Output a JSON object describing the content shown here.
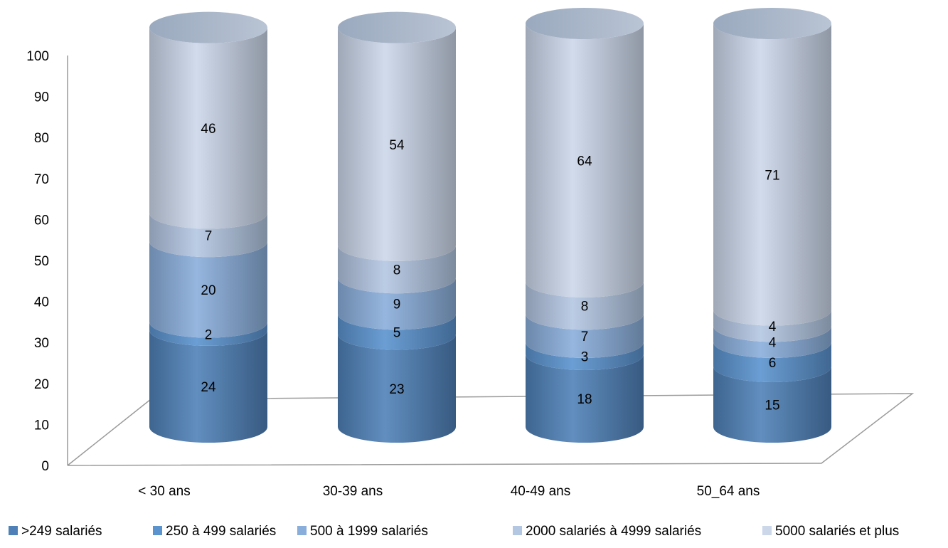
{
  "chart_data": {
    "type": "bar",
    "stacked": true,
    "style": "3d-cylinder",
    "categories": [
      "< 30 ans",
      "30-39 ans",
      "40-49 ans",
      "50_64 ans"
    ],
    "series": [
      {
        "name": ">249 salariés",
        "values": [
          24,
          23,
          18,
          15
        ],
        "color": "#4f81b8"
      },
      {
        "name": "250 à 499 salariés",
        "values": [
          2,
          5,
          3,
          6
        ],
        "color": "#5b93cf"
      },
      {
        "name": "500 à 1999 salariés",
        "values": [
          20,
          9,
          7,
          4
        ],
        "color": "#8aaedb"
      },
      {
        "name": "2000 salariés à 4999 salariés",
        "values": [
          7,
          8,
          8,
          4
        ],
        "color": "#b3c6e2"
      },
      {
        "name": "5000 salariés et plus",
        "values": [
          46,
          54,
          64,
          71
        ],
        "color": "#ccd7ea"
      }
    ],
    "ylim": [
      0,
      100
    ],
    "yticks": [
      "0",
      "10",
      "20",
      "30",
      "40",
      "50",
      "60",
      "70",
      "80",
      "90",
      "100"
    ],
    "xlabel": "",
    "ylabel": "",
    "title": "",
    "grid": false,
    "legend_position": "bottom"
  }
}
